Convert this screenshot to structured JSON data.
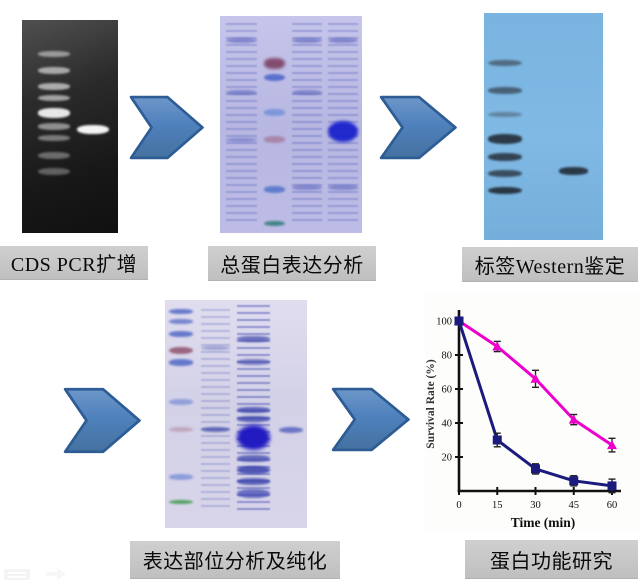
{
  "figure": {
    "steps": [
      {
        "label": "CDS PCR扩增"
      },
      {
        "label": "总蛋白表达分析"
      },
      {
        "label": "标签Western鉴定"
      },
      {
        "label": "表达部位分析及纯化"
      },
      {
        "label": "蛋白功能研究"
      }
    ]
  },
  "colors": {
    "arrow_fill_top": "#6d97c9",
    "arrow_fill_mid": "#4f81bd",
    "arrow_fill_bottom": "#44719f",
    "arrow_stroke": "#2e5c94",
    "label_bg": "#c6c6c6",
    "magenta_series": "#ee00cc",
    "navy_series": "#1b1b7e"
  },
  "gels": {
    "pcr": {
      "bg": "linear-gradient(160deg,#505050 0%,#2b2b2b 35%,#181818 70%,#101010 100%)",
      "lanes": [
        {
          "x": 17,
          "w": 33,
          "bands": [
            {
              "y": 14.5,
              "h": 2.8,
              "c": "#b9b9b9",
              "o": 0.75
            },
            {
              "y": 22,
              "h": 3.2,
              "c": "#c6c6c6",
              "o": 0.8
            },
            {
              "y": 29.5,
              "h": 3.2,
              "c": "#cccccc",
              "o": 0.8
            },
            {
              "y": 35,
              "h": 3.0,
              "c": "#c9c9c9",
              "o": 0.75
            },
            {
              "y": 41.5,
              "h": 4.4,
              "c": "#f2f2f2",
              "o": 0.95
            },
            {
              "y": 48.5,
              "h": 3.0,
              "c": "#bdbdbd",
              "o": 0.7
            },
            {
              "y": 54,
              "h": 2.8,
              "c": "#b5b5b5",
              "o": 0.6
            },
            {
              "y": 62,
              "h": 3.4,
              "c": "#ababab",
              "o": 0.55
            },
            {
              "y": 69.5,
              "h": 3.4,
              "c": "#a5a5a5",
              "o": 0.5
            }
          ]
        },
        {
          "x": 57,
          "w": 34,
          "bands": [
            {
              "y": 49.5,
              "h": 4.2,
              "c": "#fbfbfb",
              "o": 0.97
            }
          ]
        }
      ]
    },
    "sds1": {
      "bg": "linear-gradient(180deg,#c6c5ea 0%,#b7b7e2 50%,#bdbce6 100%)",
      "lanes": [
        {
          "x": 4,
          "w": 22,
          "streak": {
            "c": "#4a55b4",
            "o": 0.3,
            "y": 3,
            "hgt": 94
          },
          "bands": [
            {
              "y": 10,
              "h": 2.5,
              "c": "#4a55b4",
              "o": 0.55
            },
            {
              "y": 34,
              "h": 2.5,
              "c": "#4a55b4",
              "o": 0.5
            },
            {
              "y": 56,
              "h": 2.0,
              "c": "#4a55b4",
              "o": 0.45
            }
          ]
        },
        {
          "x": 31,
          "w": 15,
          "bands": [
            {
              "y": 19.5,
              "h": 5.0,
              "c": "#7c4062",
              "o": 0.9,
              "blur": 1.5
            },
            {
              "y": 26.5,
              "h": 3.5,
              "c": "#4a63c8",
              "o": 0.85
            },
            {
              "y": 43,
              "h": 3.0,
              "c": "#6f8fd8",
              "o": 0.8
            },
            {
              "y": 55.5,
              "h": 3.0,
              "c": "#a06888",
              "o": 0.6
            },
            {
              "y": 78.5,
              "h": 3.0,
              "c": "#4a6fc8",
              "o": 0.8
            },
            {
              "y": 94.5,
              "h": 2.5,
              "c": "#2f7a78",
              "o": 0.85
            }
          ]
        },
        {
          "x": 51,
          "w": 21,
          "streak": {
            "c": "#4a55b4",
            "o": 0.32,
            "y": 3,
            "hgt": 94
          },
          "bands": [
            {
              "y": 10,
              "h": 2.5,
              "c": "#4a55b4",
              "o": 0.55
            },
            {
              "y": 34,
              "h": 2.2,
              "c": "#4a55b4",
              "o": 0.5
            },
            {
              "y": 78,
              "h": 2.2,
              "c": "#4a55b4",
              "o": 0.5
            }
          ]
        },
        {
          "x": 76,
          "w": 21,
          "streak": {
            "c": "#4a55b4",
            "o": 0.3,
            "y": 3,
            "hgt": 94
          },
          "bands": [
            {
              "y": 10,
              "h": 2.5,
              "c": "#4a55b4",
              "o": 0.55
            },
            {
              "y": 48.5,
              "h": 9.5,
              "c": "#1a22cc",
              "o": 0.95,
              "blur": 1.5,
              "r": 50
            },
            {
              "y": 78,
              "h": 2.2,
              "c": "#4a55b4",
              "o": 0.5
            }
          ]
        }
      ]
    },
    "western": {
      "bg": "linear-gradient(180deg,#79b3df 0%,#7fb9e4 55%,#74aeda 100%)",
      "lanes": [
        {
          "x": 3,
          "w": 29,
          "bands": [
            {
              "y": 20.5,
              "h": 3.0,
              "c": "#3a4550",
              "o": 0.65
            },
            {
              "y": 32.5,
              "h": 3.0,
              "c": "#333e4a",
              "o": 0.7
            },
            {
              "y": 43.5,
              "h": 2.5,
              "c": "#46525e",
              "o": 0.5
            },
            {
              "y": 53.5,
              "h": 4.2,
              "c": "#232d38",
              "o": 0.9
            },
            {
              "y": 61.5,
              "h": 3.6,
              "c": "#26303c",
              "o": 0.85
            },
            {
              "y": 69,
              "h": 3.2,
              "c": "#2a3440",
              "o": 0.8
            },
            {
              "y": 76.5,
              "h": 3.4,
              "c": "#202a34",
              "o": 0.9
            }
          ]
        },
        {
          "x": 63,
          "w": 24,
          "bands": [
            {
              "y": 68,
              "h": 3.2,
              "c": "#222c38",
              "o": 0.9
            }
          ]
        }
      ]
    },
    "sds2": {
      "bg": "linear-gradient(180deg,#e0ddef 0%,#d3d1e7 45%,#d8d5ea 100%)",
      "lanes": [
        {
          "x": 3,
          "w": 17,
          "bands": [
            {
              "y": 4,
              "h": 2.2,
              "c": "#4a62c4",
              "o": 0.8
            },
            {
              "y": 8.5,
              "h": 2.2,
              "c": "#4a62c4",
              "o": 0.7
            },
            {
              "y": 13.5,
              "h": 2.6,
              "c": "#4a62c4",
              "o": 0.8
            },
            {
              "y": 20.5,
              "h": 3.4,
              "c": "#8a4a66",
              "o": 0.8
            },
            {
              "y": 26,
              "h": 2.8,
              "c": "#4a62c4",
              "o": 0.8
            },
            {
              "y": 43.5,
              "h": 2.4,
              "c": "#6f87d4",
              "o": 0.65
            },
            {
              "y": 55.5,
              "h": 2.4,
              "c": "#b286a0",
              "o": 0.55
            },
            {
              "y": 76.5,
              "h": 2.4,
              "c": "#6f87d4",
              "o": 0.7
            },
            {
              "y": 87.5,
              "h": 2.0,
              "c": "#3f9a50",
              "o": 0.85
            }
          ]
        },
        {
          "x": 25,
          "w": 21,
          "streak": {
            "c": "#5560b8",
            "o": 0.28,
            "y": 4,
            "hgt": 88
          },
          "bands": [
            {
              "y": 20,
              "h": 2.0,
              "c": "#5560b8",
              "o": 0.45
            },
            {
              "y": 55.5,
              "h": 2.6,
              "c": "#4a54b0",
              "o": 0.8
            }
          ]
        },
        {
          "x": 51,
          "w": 23,
          "streak": {
            "c": "#4a50b4",
            "o": 0.5,
            "y": 2,
            "hgt": 92
          },
          "bands": [
            {
              "y": 16,
              "h": 2.4,
              "c": "#3c46aa",
              "o": 0.7
            },
            {
              "y": 26,
              "h": 2.4,
              "c": "#3c46aa",
              "o": 0.6
            },
            {
              "y": 47,
              "h": 2.6,
              "c": "#3c46aa",
              "o": 0.8
            },
            {
              "y": 51,
              "h": 2.4,
              "c": "#3c46aa",
              "o": 0.8
            },
            {
              "y": 55,
              "h": 11,
              "c": "#1c16c0",
              "o": 0.97,
              "blur": 2,
              "r": 50
            },
            {
              "y": 68,
              "h": 3.0,
              "c": "#3c46aa",
              "o": 0.75
            },
            {
              "y": 73,
              "h": 3.5,
              "c": "#2f38a8",
              "o": 0.8
            },
            {
              "y": 78,
              "h": 3.0,
              "c": "#333ca8",
              "o": 0.75
            },
            {
              "y": 83,
              "h": 4.0,
              "c": "#3a44b0",
              "o": 0.7
            }
          ]
        },
        {
          "x": 80,
          "w": 17,
          "bands": [
            {
              "y": 55.5,
              "h": 2.8,
              "c": "#5a64c0",
              "o": 0.85
            }
          ]
        }
      ]
    }
  },
  "chart_data": {
    "type": "line",
    "title": "",
    "xlabel": "Time (min)",
    "ylabel": "Survival Rate (%)",
    "x": [
      0,
      15,
      30,
      45,
      60
    ],
    "xticks": [
      0,
      15,
      30,
      45,
      60
    ],
    "yticks": [
      20,
      40,
      60,
      80,
      100
    ],
    "xlim": [
      0,
      63
    ],
    "ylim": [
      0,
      105
    ],
    "grid": false,
    "legend": false,
    "series": [
      {
        "name": "series-magenta-triangle",
        "marker": "triangle",
        "color": "#ee00cc",
        "values": [
          100,
          85,
          66,
          42,
          27
        ],
        "errors": [
          0,
          3,
          5,
          3,
          4
        ]
      },
      {
        "name": "series-navy-square",
        "marker": "square",
        "color": "#1b1b7e",
        "values": [
          100,
          30,
          13,
          6,
          3
        ],
        "errors": [
          0,
          4,
          3,
          3,
          4
        ]
      }
    ]
  }
}
